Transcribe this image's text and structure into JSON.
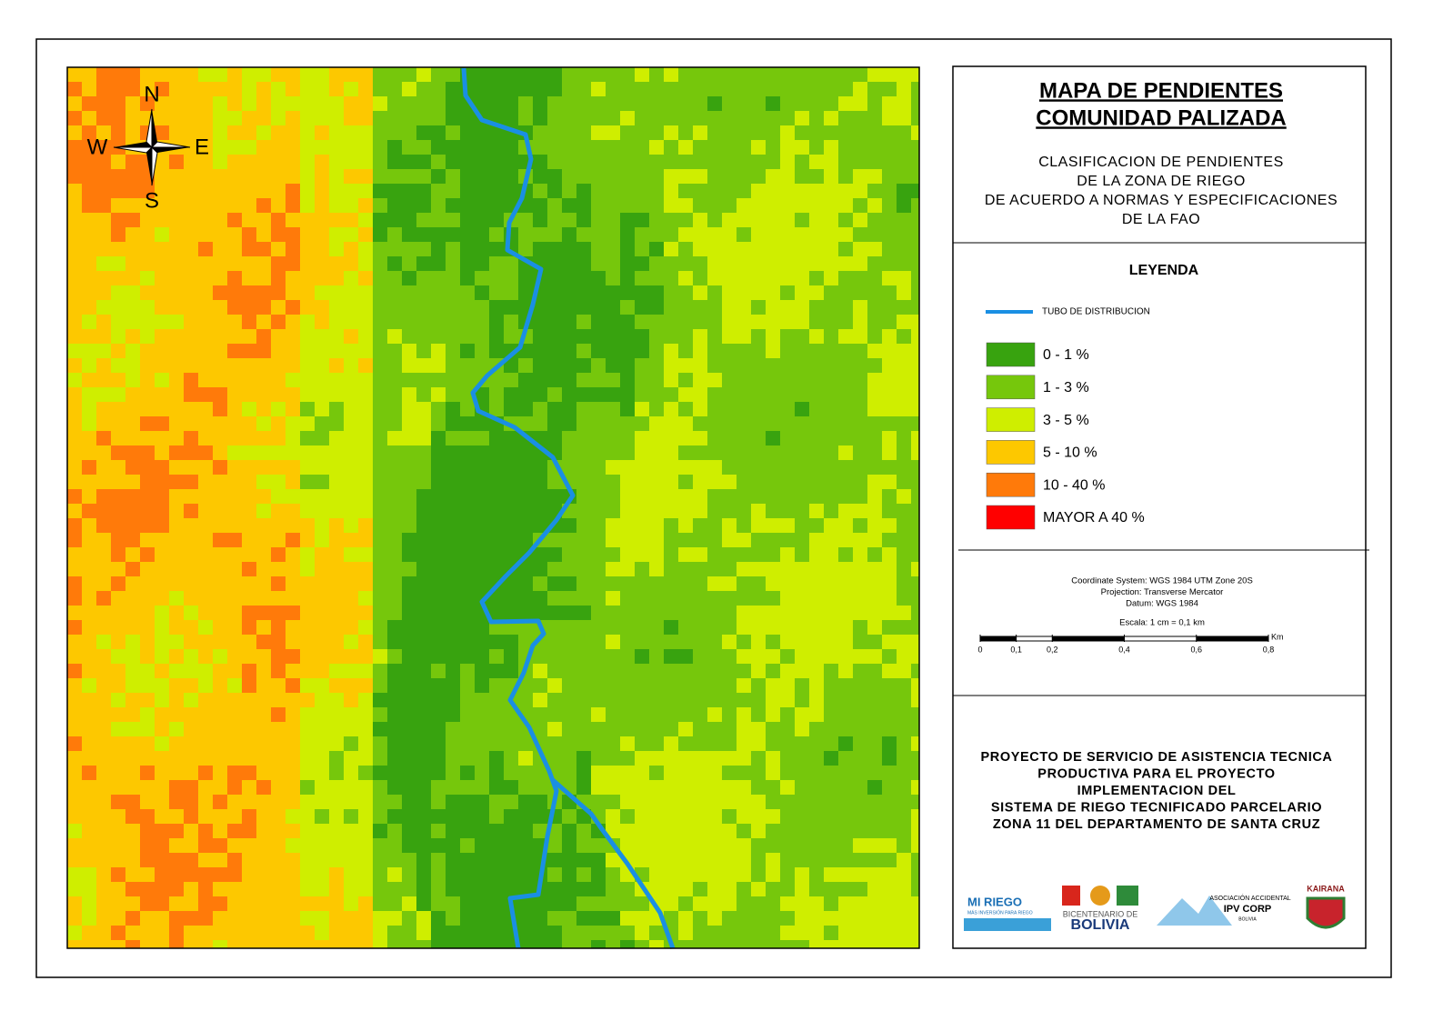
{
  "compass": {
    "n": "N",
    "s": "S",
    "w": "W",
    "e": "E"
  },
  "title": [
    "MAPA DE PENDIENTES",
    "COMUNIDAD PALIZADA"
  ],
  "subtitle": [
    "CLASIFICACION DE PENDIENTES",
    "DE LA ZONA DE RIEGO",
    "DE ACUERDO A NORMAS Y ESPECIFICACIONES",
    "DE LA FAO"
  ],
  "legend": {
    "title": "LEYENDA",
    "line": {
      "label": "TUBO DE DISTRIBUCION",
      "color": "#1a8fe3"
    },
    "classes": [
      {
        "label": "0 - 1 %",
        "color": "#38a30f"
      },
      {
        "label": "1 - 3 %",
        "color": "#76c70c"
      },
      {
        "label": "3 - 5 %",
        "color": "#cfee00"
      },
      {
        "label": "5 - 10 %",
        "color": "#fdc800"
      },
      {
        "label": "10 - 40 %",
        "color": "#ff7a0a"
      },
      {
        "label": "MAYOR A 40 %",
        "color": "#ff0000"
      }
    ]
  },
  "info": {
    "lines": [
      "Coordinate System: WGS 1984 UTM Zone 20S",
      "Projection: Transverse Mercator",
      "Datum: WGS 1984"
    ],
    "scale_text": "Escala: 1 cm = 0,1 km",
    "scale_bar": {
      "unit": "Km",
      "ticks": [
        0,
        {
          "value": 0.1,
          "label": "0,1"
        },
        {
          "value": 0.2,
          "label": "0,2"
        },
        {
          "value": 0.4,
          "label": "0,4"
        },
        {
          "value": 0.6,
          "label": "0,6"
        },
        {
          "value": 0.8,
          "label": "0,8"
        }
      ]
    }
  },
  "project": [
    "PROYECTO DE SERVICIO DE ASISTENCIA TECNICA",
    "PRODUCTIVA PARA EL PROYECTO",
    "IMPLEMENTACION DEL",
    "SISTEMA DE RIEGO TECNIFICADO PARCELARIO",
    "ZONA 11 DEL DEPARTAMENTO DE SANTA CRUZ"
  ],
  "logos": {
    "miriego": "MI RIEGO",
    "miriego_sub": "MÁS INVERSIÓN PARA RIEGO",
    "bicentenario": "BICENTENARIO DE",
    "bolivia": "BOLIVIA",
    "ipv_top": "ASOCIACIÓN ACCIDENTAL",
    "ipv": "IPV CORP",
    "ipv_sub": "BOLIVIA",
    "kairana": "KAIRANA"
  }
}
